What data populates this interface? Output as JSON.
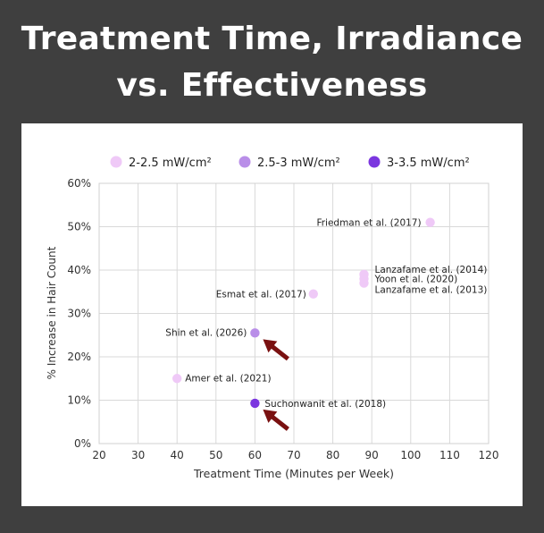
{
  "title": {
    "line1": "Treatment Time, Irradiance",
    "line2": "vs. Effectiveness"
  },
  "chart_data": {
    "type": "scatter",
    "xlabel": "Treatment Time (Minutes per Week)",
    "ylabel": "% Increase in Hair Count",
    "xlim": [
      20,
      120
    ],
    "ylim": [
      0,
      60
    ],
    "xticks": [
      "20",
      "30",
      "40",
      "50",
      "60",
      "70",
      "80",
      "90",
      "100",
      "110",
      "120"
    ],
    "yticks": [
      "0%",
      "10%",
      "20%",
      "30%",
      "40%",
      "50%",
      "60%"
    ],
    "grid": true,
    "legend_position": "top",
    "series": [
      {
        "name": "2-2.5 mW/cm²",
        "color": "#efc9f7",
        "points": [
          {
            "label": "Friedman et al. (2017)",
            "x": 105,
            "y": 51
          },
          {
            "label": "Lanzafame et al. (2014)",
            "x": 88,
            "y": 39
          },
          {
            "label": "Yoon et al. (2020)",
            "x": 88,
            "y": 38
          },
          {
            "label": "Lanzafame et al. (2013)",
            "x": 88,
            "y": 37
          },
          {
            "label": "Esmat et al. (2017)",
            "x": 75,
            "y": 34.5
          },
          {
            "label": "Amer et al. (2021)",
            "x": 40,
            "y": 15
          }
        ]
      },
      {
        "name": "2.5-3 mW/cm²",
        "color": "#b98ee8",
        "points": [
          {
            "label": "Shin et al. (2026)",
            "x": 60,
            "y": 25.5
          }
        ]
      },
      {
        "name": "3-3.5 mW/cm²",
        "color": "#7b36df",
        "points": [
          {
            "label": "Suchonwanit et al. (2018)",
            "x": 60,
            "y": 9.3
          }
        ]
      }
    ],
    "arrow_color": "#7a1111"
  }
}
